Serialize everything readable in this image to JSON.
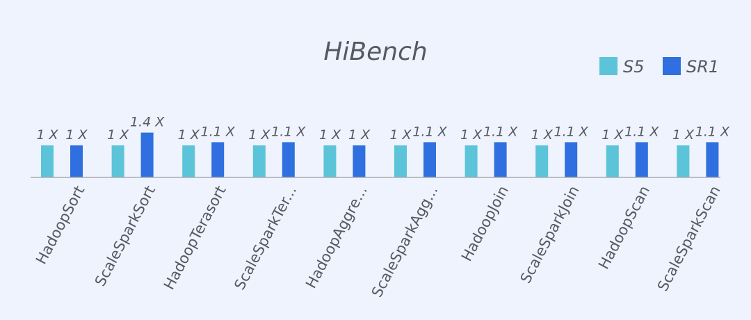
{
  "chart_data": {
    "type": "bar",
    "title": "HiBench",
    "xlabel": "",
    "ylabel": "",
    "ylim": [
      0,
      1.6
    ],
    "grid": false,
    "legend_position": "top-right",
    "categories": [
      "HadoopSort",
      "ScaleSparkSort",
      "HadoopTerasort",
      "ScaleSparkTer...",
      "HadoopAggre...",
      "ScaleSparkAgg...",
      "HadoopJoin",
      "ScaleSparkJoin",
      "HadoopScan",
      "ScaleSparkScan"
    ],
    "series": [
      {
        "name": "S5",
        "color": "#5bc4d8",
        "values": [
          1,
          1,
          1,
          1,
          1,
          1,
          1,
          1,
          1,
          1
        ],
        "labels": [
          "1 X",
          "1 X",
          "1 X",
          "1 X",
          "1 X",
          "1 X",
          "1 X",
          "1 X",
          "1 X",
          "1 X"
        ]
      },
      {
        "name": "SR1",
        "color": "#2f6fe0",
        "values": [
          1,
          1.4,
          1.1,
          1.1,
          1,
          1.1,
          1.1,
          1.1,
          1.1,
          1.1
        ],
        "labels": [
          "1 X",
          "1.4 X",
          "1.1 X",
          "1.1 X",
          "1 X",
          "1.1 X",
          "1.1 X",
          "1.1 X",
          "1.1 X",
          "1.1 X"
        ]
      }
    ]
  }
}
